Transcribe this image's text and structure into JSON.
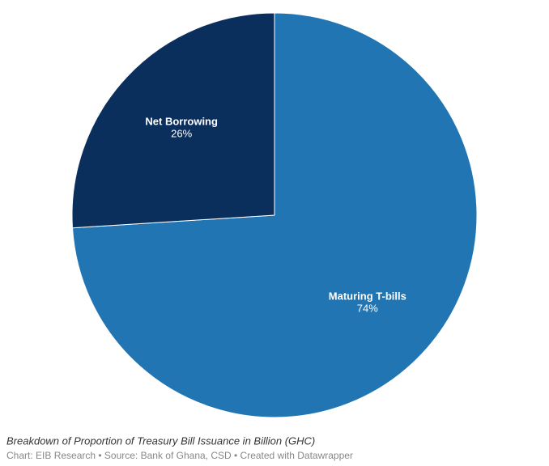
{
  "chart_data": {
    "type": "pie",
    "title": "Breakdown of Proportion of Treasury Bill Issuance in Billion (GHC)",
    "source": "Chart: EIB Research • Source: Bank of Ghana, CSD • Created with Datawrapper",
    "categories": [
      "Maturing T-bills",
      "Net Borrowing"
    ],
    "values": [
      74,
      26
    ],
    "value_labels": [
      "74%",
      "26%"
    ],
    "colors": [
      "#2275b3",
      "#0b2f5d"
    ]
  }
}
